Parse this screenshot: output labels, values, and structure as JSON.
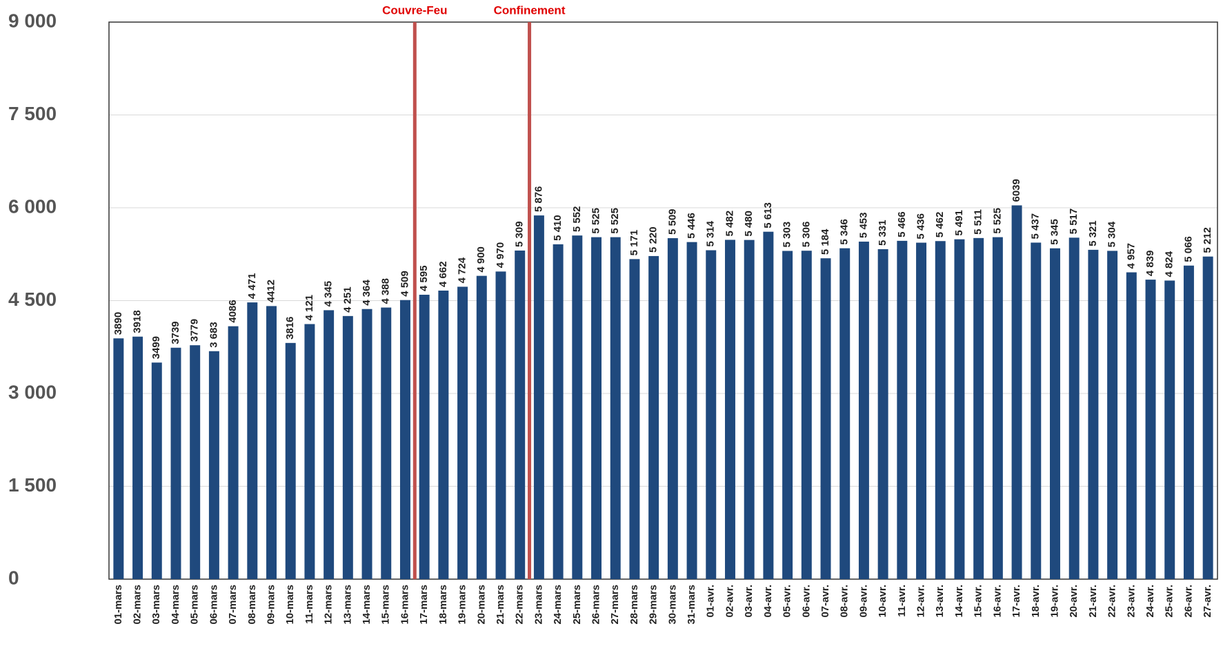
{
  "chart_data": {
    "type": "bar",
    "color": "#1f497d",
    "categories": [
      "01-mars",
      "02-mars",
      "03-mars",
      "04-mars",
      "05-mars",
      "06-mars",
      "07-mars",
      "08-mars",
      "09-mars",
      "10-mars",
      "11-mars",
      "12-mars",
      "13-mars",
      "14-mars",
      "15-mars",
      "16-mars",
      "17-mars",
      "18-mars",
      "19-mars",
      "20-mars",
      "21-mars",
      "22-mars",
      "23-mars",
      "24-mars",
      "25-mars",
      "26-mars",
      "27-mars",
      "28-mars",
      "29-mars",
      "30-mars",
      "31-mars",
      "01-avr.",
      "02-avr.",
      "03-avr.",
      "04-avr.",
      "05-avr.",
      "06-avr.",
      "07-avr.",
      "08-avr.",
      "09-avr.",
      "10-avr.",
      "11-avr.",
      "12-avr.",
      "13-avr.",
      "14-avr.",
      "15-avr.",
      "16-avr.",
      "17-avr.",
      "18-avr.",
      "19-avr.",
      "20-avr.",
      "21-avr.",
      "22-avr.",
      "23-avr.",
      "24-avr.",
      "25-avr.",
      "26-avr.",
      "27-avr."
    ],
    "values": [
      3890,
      3918,
      3499,
      3739,
      3779,
      3683,
      4086,
      4471,
      4412,
      3816,
      4121,
      4345,
      4251,
      4364,
      4388,
      4509,
      4595,
      4662,
      4724,
      4900,
      4970,
      5309,
      5876,
      5410,
      5552,
      5525,
      5525,
      5171,
      5220,
      5509,
      5446,
      5314,
      5482,
      5480,
      5613,
      5303,
      5306,
      5184,
      5346,
      5453,
      5331,
      5466,
      5436,
      5462,
      5491,
      5511,
      5525,
      6039,
      5437,
      5345,
      5517,
      5321,
      5304,
      4957,
      4839,
      4824,
      5066,
      5212
    ],
    "value_labels": [
      "3890",
      "3918",
      "3499",
      "3739",
      "3779",
      "3 683",
      "4086",
      "4 471",
      "4412",
      "3816",
      "4 121",
      "4 345",
      "4 251",
      "4 364",
      "4 388",
      "4 509",
      "4 595",
      "4 662",
      "4 724",
      "4 900",
      "4 970",
      "5 309",
      "5 876",
      "5 410",
      "5 552",
      "5 525",
      "5 525",
      "5 171",
      "5 220",
      "5 509",
      "5 446",
      "5 314",
      "5 482",
      "5 480",
      "5 613",
      "5 303",
      "5 306",
      "5 184",
      "5 346",
      "5 453",
      "5 331",
      "5 466",
      "5 436",
      "5 462",
      "5 491",
      "5 511",
      "5 525",
      "6039",
      "5 437",
      "5 345",
      "5 517",
      "5 321",
      "5 304",
      "4 957",
      "4 839",
      "4 824",
      "5 066",
      "5 212"
    ],
    "ylim": [
      0,
      9000
    ],
    "yticks": [
      0,
      {
        "value": 1500,
        "label": "1 500"
      },
      {
        "value": 3000,
        "label": "3 000"
      },
      {
        "value": 4500,
        "label": "4 500"
      },
      {
        "value": 6000,
        "label": "6 000"
      },
      {
        "value": 7500,
        "label": "7 500"
      },
      {
        "value": 9000,
        "label": "9 000"
      }
    ],
    "grid": true,
    "annotations": [
      {
        "text": "Couvre-Feu",
        "category": "17-mars",
        "color": "#c0504d"
      },
      {
        "text": "Confinement",
        "category": "23-mars",
        "color": "#c0504d"
      }
    ]
  }
}
